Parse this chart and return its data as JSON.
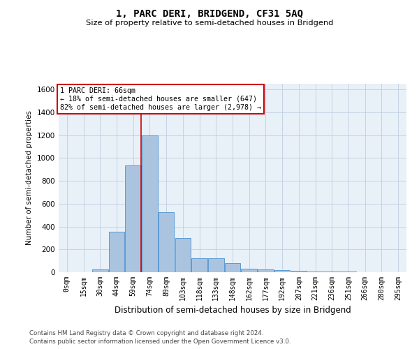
{
  "title": "1, PARC DERI, BRIDGEND, CF31 5AQ",
  "subtitle": "Size of property relative to semi-detached houses in Bridgend",
  "xlabel": "Distribution of semi-detached houses by size in Bridgend",
  "ylabel": "Number of semi-detached properties",
  "categories": [
    "0sqm",
    "15sqm",
    "30sqm",
    "44sqm",
    "59sqm",
    "74sqm",
    "89sqm",
    "103sqm",
    "118sqm",
    "133sqm",
    "148sqm",
    "162sqm",
    "177sqm",
    "192sqm",
    "207sqm",
    "221sqm",
    "236sqm",
    "251sqm",
    "266sqm",
    "280sqm",
    "295sqm"
  ],
  "values": [
    0,
    0,
    25,
    355,
    935,
    1200,
    525,
    300,
    120,
    120,
    80,
    30,
    25,
    20,
    12,
    8,
    6,
    5,
    2,
    1,
    0
  ],
  "bar_color": "#aac4e0",
  "bar_edge_color": "#5b9bd5",
  "pct_smaller": 18,
  "pct_larger": 82,
  "num_smaller": 647,
  "num_larger": 2978,
  "annotation_box_edge": "#cc0000",
  "vline_color": "#cc0000",
  "ylim": [
    0,
    1650
  ],
  "yticks": [
    0,
    200,
    400,
    600,
    800,
    1000,
    1200,
    1400,
    1600
  ],
  "plot_bg_color": "#e8f0f8",
  "grid_color": "#c0cfe0",
  "footer1": "Contains HM Land Registry data © Crown copyright and database right 2024.",
  "footer2": "Contains public sector information licensed under the Open Government Licence v3.0."
}
